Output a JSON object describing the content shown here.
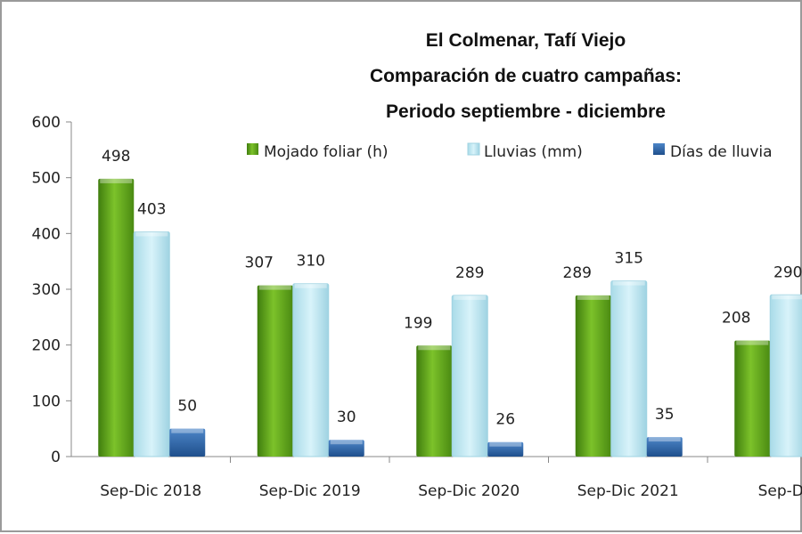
{
  "chart_data": {
    "type": "bar",
    "title": [
      "El Colmenar, Tafí Viejo",
      "Comparación de cuatro campañas:",
      "Periodo septiembre - diciembre"
    ],
    "categories": [
      "Sep-Dic 2018",
      "Sep-Dic 2019",
      "Sep-Dic 2020",
      "Sep-Dic 2021",
      "Sep-Dic"
    ],
    "series": [
      {
        "name": "Mojado foliar (h)",
        "values": [
          498,
          307,
          199,
          289,
          208
        ],
        "color": "#5a9e1a"
      },
      {
        "name": "Lluvias (mm)",
        "values": [
          403,
          310,
          289,
          315,
          290
        ],
        "color": "#bfe8f2"
      },
      {
        "name": "Días de lluvia",
        "values": [
          50,
          30,
          26,
          35,
          null
        ],
        "color": "#2a5c9c"
      }
    ],
    "ylim": [
      0,
      600
    ],
    "yticks": [
      "0",
      "100",
      "200",
      "300",
      "400",
      "500",
      "600"
    ],
    "grid": false,
    "legend": "top-right",
    "xlabel": "",
    "ylabel": ""
  }
}
